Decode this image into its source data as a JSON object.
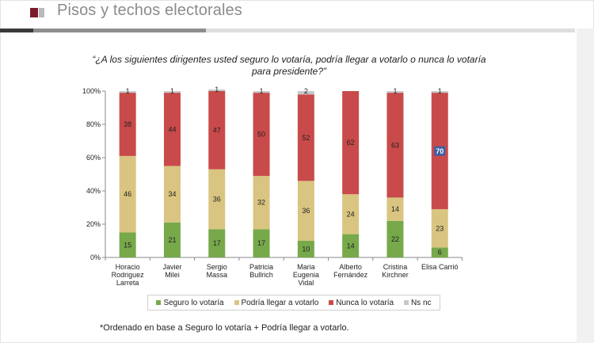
{
  "slide": {
    "title": "Pisos y techos electorales",
    "question": "“¿A los siguientes dirigentes usted seguro lo votaría, podría llegar a votarlo o nunca lo votaría para presidente?”",
    "footnote": "*Ordenado en base a Seguro lo votaría + Podría llegar a votarlo.",
    "brand_colors": {
      "logo_dark": "#7b1b2a",
      "logo_light": "#b9b9bd"
    }
  },
  "chart_data": {
    "type": "bar",
    "stacked": true,
    "percent": true,
    "categories": [
      [
        "Horacio",
        "Rodriguez",
        "Larreta"
      ],
      [
        "Javier",
        "Milei"
      ],
      [
        "Sergio",
        "Massa"
      ],
      [
        "Patricia",
        "Bullrich"
      ],
      [
        "Maria",
        "Eugenia",
        "Vidal"
      ],
      [
        "Alberto",
        "Fernández"
      ],
      [
        "Cristina",
        "Kirchner"
      ],
      [
        "Elisa Carrió"
      ]
    ],
    "series": [
      {
        "name": "Seguro lo votaría",
        "color": "#77a94b",
        "values": [
          15,
          21,
          17,
          17,
          10,
          14,
          22,
          6
        ]
      },
      {
        "name": "Podría llegar  a votarlo",
        "color": "#d9c581",
        "values": [
          46,
          34,
          36,
          32,
          36,
          24,
          14,
          23
        ]
      },
      {
        "name": "Nunca lo votaría",
        "color": "#c94a4a",
        "values": [
          38,
          44,
          47,
          50,
          52,
          62,
          63,
          70
        ]
      },
      {
        "name": "Ns nc",
        "color": "#c8c8c8",
        "values": [
          1,
          1,
          1,
          1,
          2,
          null,
          1,
          1
        ]
      }
    ],
    "highlighted_label": {
      "series": "Nunca lo votaría",
      "category_index": 7,
      "bg_color": "#3d5fa3"
    },
    "yticks": [
      "0%",
      "20%",
      "40%",
      "60%",
      "80%",
      "100%"
    ],
    "ylim": [
      0,
      100
    ],
    "legend_position": "bottom",
    "grid": false
  }
}
